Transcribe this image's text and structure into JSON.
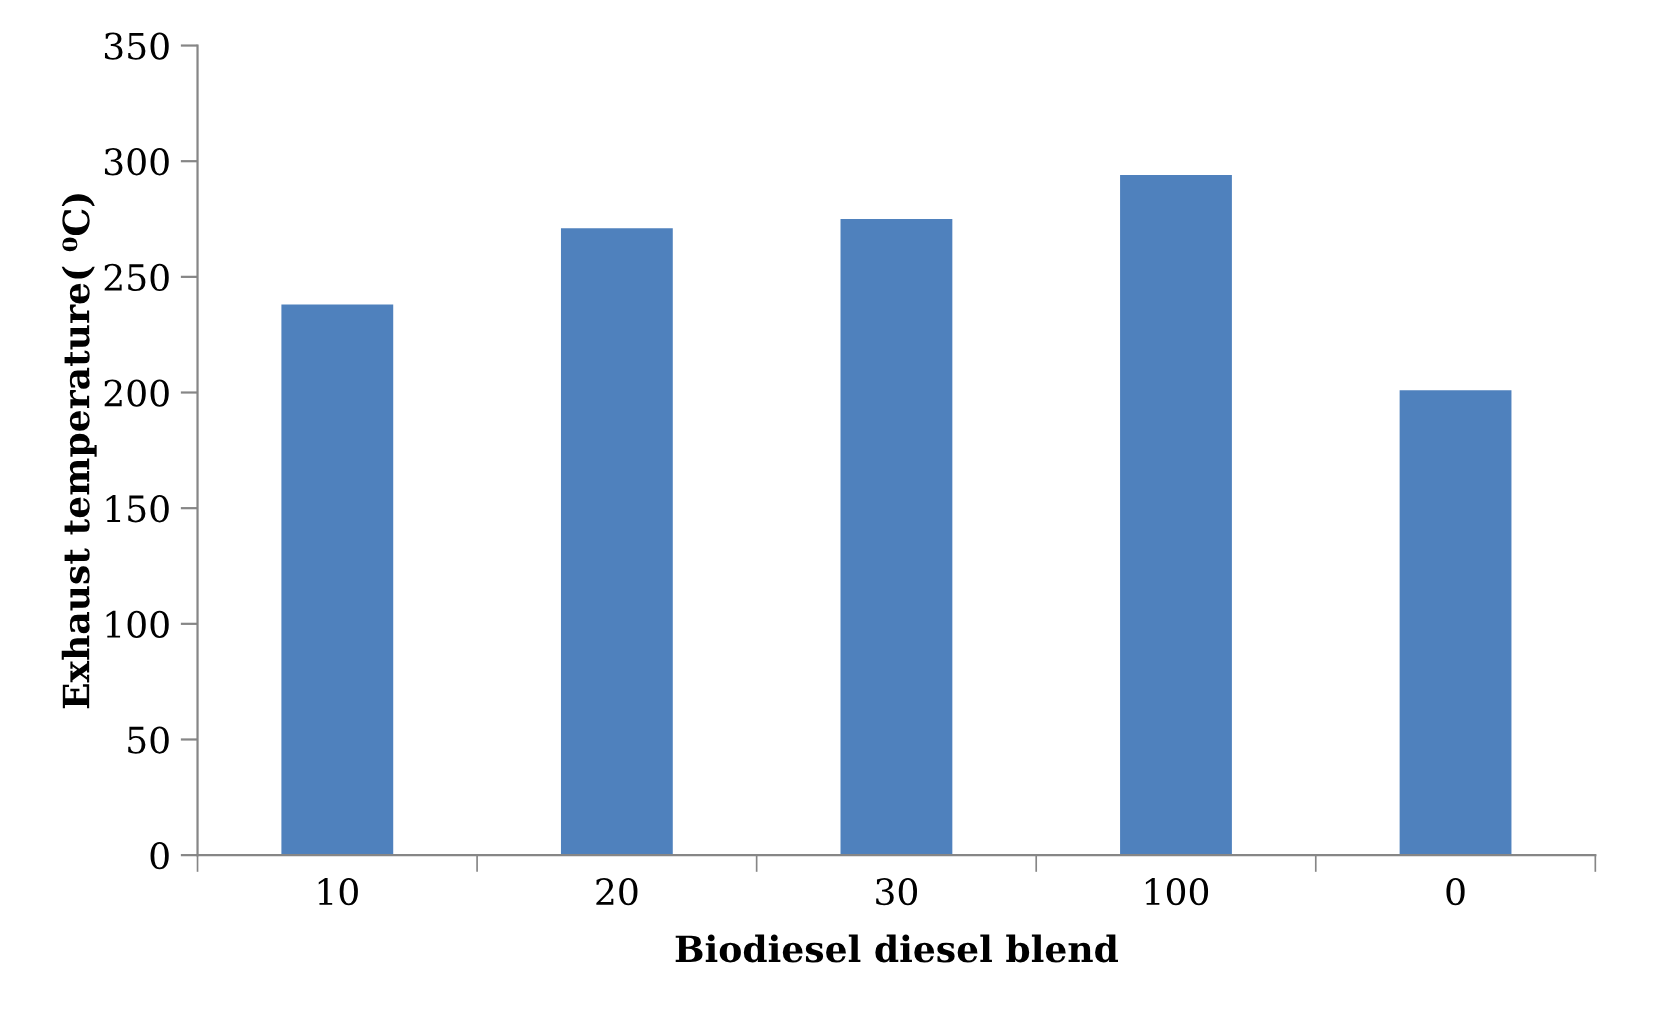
{
  "chart_data": {
    "type": "bar",
    "xlabel": "Biodiesel diesel blend",
    "ylabel": "Exhaust temperature( ⁰C)",
    "categories": [
      "10",
      "20",
      "30",
      "100",
      "0"
    ],
    "values": [
      238,
      271,
      275,
      294,
      201
    ],
    "color": "#4f81bd",
    "ylim": [
      0,
      350
    ],
    "yticks": [
      0,
      50,
      100,
      150,
      200,
      250,
      300,
      350
    ],
    "grid": false
  }
}
